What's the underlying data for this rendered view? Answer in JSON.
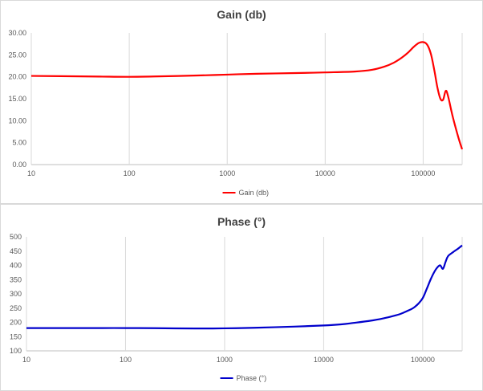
{
  "chart_data": [
    {
      "type": "line",
      "title": "Gain (db)",
      "xscale": "log",
      "xlim": [
        10,
        250000
      ],
      "ylim": [
        0,
        30
      ],
      "yticks": [
        "0.00",
        "5.00",
        "10.00",
        "15.00",
        "20.00",
        "25.00",
        "30.00"
      ],
      "xticks": [
        "10",
        "100",
        "1000",
        "10000",
        "100000"
      ],
      "grid": "vertical",
      "legend": "bottom",
      "series": [
        {
          "name": "Gain (db)",
          "color": "#ff0000",
          "x": [
            10,
            20,
            50,
            100,
            200,
            500,
            1000,
            2000,
            5000,
            10000,
            20000,
            30000,
            40000,
            50000,
            60000,
            70000,
            80000,
            90000,
            100000,
            110000,
            120000,
            130000,
            140000,
            150000,
            160000,
            170000,
            180000,
            200000,
            230000,
            250000
          ],
          "y": [
            20.2,
            20.15,
            20.05,
            20.0,
            20.1,
            20.3,
            20.5,
            20.7,
            20.85,
            21.0,
            21.2,
            21.6,
            22.3,
            23.2,
            24.3,
            25.5,
            26.8,
            27.7,
            27.9,
            27.3,
            25.2,
            21.5,
            17.5,
            15.0,
            14.8,
            16.8,
            15.5,
            11.0,
            6.0,
            3.5
          ]
        }
      ]
    },
    {
      "type": "line",
      "title": "Phase (°)",
      "xscale": "log",
      "xlim": [
        10,
        250000
      ],
      "ylim": [
        100,
        500
      ],
      "yticks": [
        "100",
        "150",
        "200",
        "250",
        "300",
        "350",
        "400",
        "450",
        "500"
      ],
      "xticks": [
        "10",
        "100",
        "1000",
        "10000",
        "100000"
      ],
      "grid": "vertical",
      "legend": "bottom",
      "series": [
        {
          "name": "Phase (°)",
          "color": "#0000cc",
          "x": [
            10,
            20,
            50,
            100,
            200,
            500,
            1000,
            2000,
            5000,
            10000,
            15000,
            20000,
            30000,
            40000,
            50000,
            60000,
            70000,
            80000,
            90000,
            100000,
            110000,
            120000,
            130000,
            140000,
            150000,
            160000,
            170000,
            180000,
            200000,
            230000,
            250000
          ],
          "y": [
            180,
            180,
            180,
            180,
            179.5,
            178.5,
            179,
            181,
            185,
            189,
            193,
            198,
            206,
            214,
            222,
            230,
            240,
            250,
            265,
            285,
            318,
            350,
            375,
            392,
            400,
            388,
            412,
            432,
            445,
            460,
            470
          ]
        }
      ]
    }
  ]
}
